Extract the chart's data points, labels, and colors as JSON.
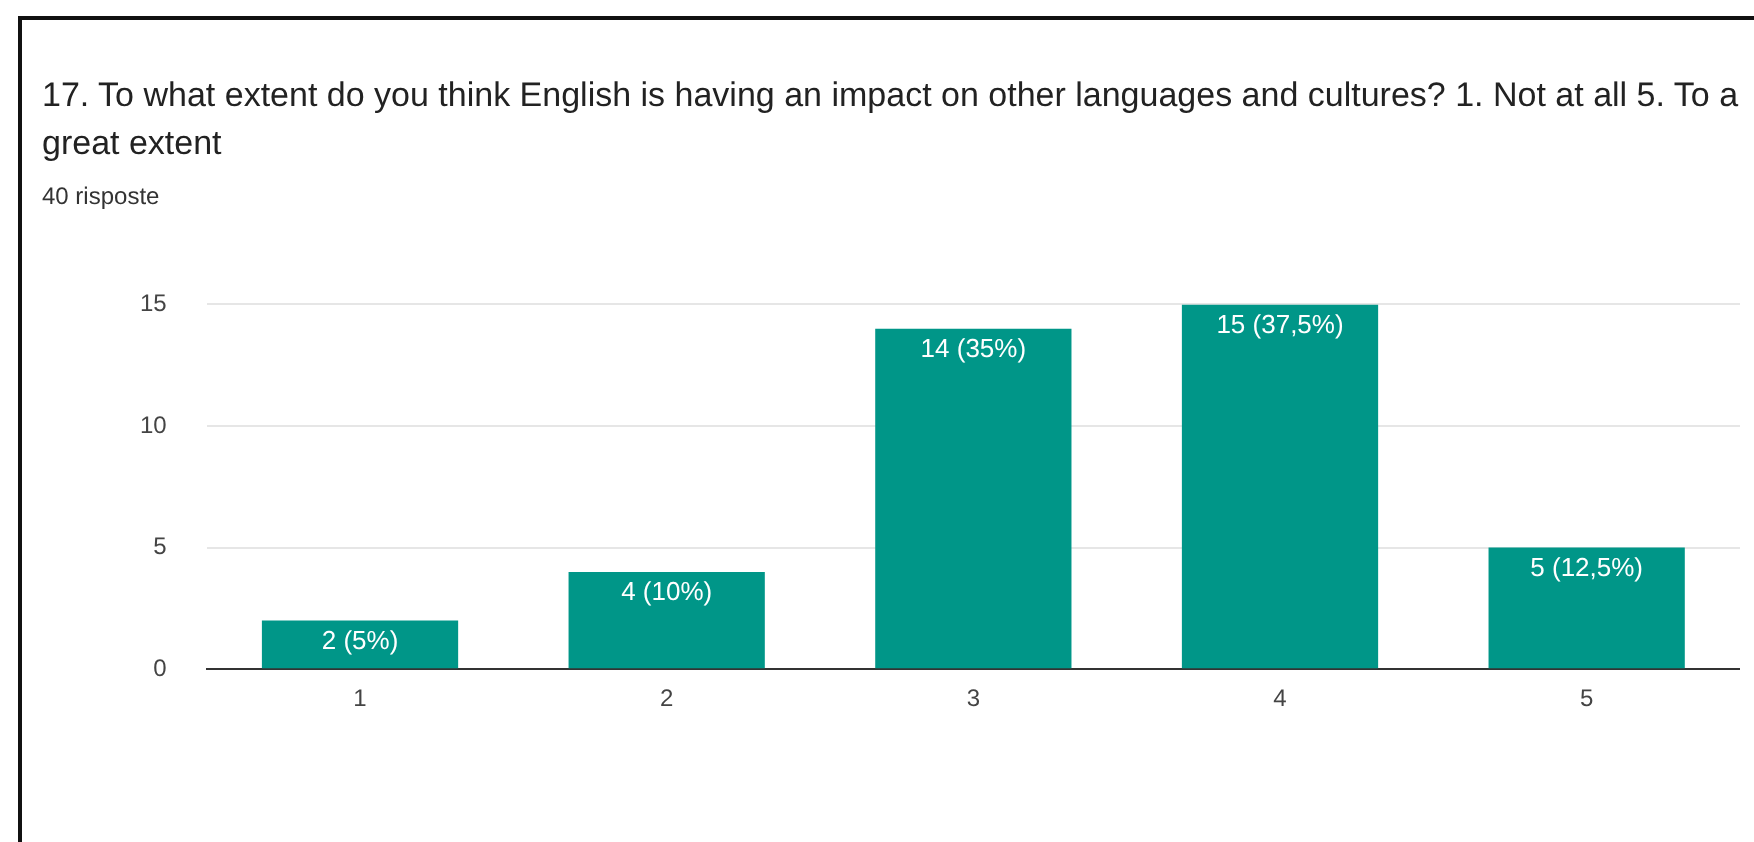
{
  "chart_data": {
    "type": "bar",
    "title": "17.  To what extent do you think English is having an impact on other languages and cultures?  1. Not at all  5. To a great extent",
    "subtitle": "40 risposte",
    "categories": [
      "1",
      "2",
      "3",
      "4",
      "5"
    ],
    "values": [
      2,
      4,
      14,
      15,
      5
    ],
    "value_labels": [
      "2 (5%)",
      "4 (10%)",
      "14 (35%)",
      "15 (37,5%)",
      "5 (12,5%)"
    ],
    "color": "#009688",
    "ylim": [
      0,
      15
    ],
    "yticks": [
      0,
      5,
      10,
      15
    ],
    "grid": "y"
  }
}
